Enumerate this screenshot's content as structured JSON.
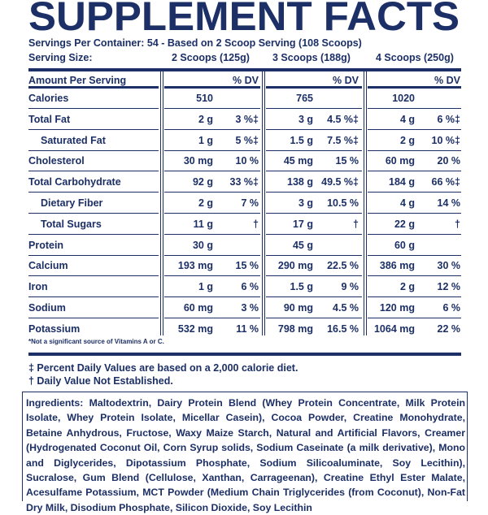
{
  "title": "SUPPLEMENT FACTS",
  "servings_per_container": "Servings Per Container: 54 - Based on 2 Scoop Serving (108 Scoops)",
  "serving_size": {
    "label": "Serving Size:",
    "columns": [
      "2 Scoops (125g)",
      "3 Scoops (188g)",
      "4 Scoops (250g)"
    ]
  },
  "table": {
    "header": [
      "Amount Per Serving",
      "% DV",
      "% DV",
      "% DV"
    ],
    "rows": [
      {
        "name": "Calories",
        "indent": false,
        "values": [
          "510",
          null,
          "765",
          null,
          "1020",
          null
        ]
      },
      {
        "name": "Total Fat",
        "indent": false,
        "values": [
          "2 g",
          "3 %‡",
          "3 g",
          "4.5 %‡",
          "4 g",
          "6 %‡"
        ]
      },
      {
        "name": "Saturated Fat",
        "indent": true,
        "values": [
          "1 g",
          "5 %‡",
          "1.5 g",
          "7.5 %‡",
          "2 g",
          "10 %‡"
        ]
      },
      {
        "name": "Cholesterol",
        "indent": false,
        "values": [
          "30 mg",
          "10 %",
          "45 mg",
          "15 %",
          "60 mg",
          "20 %"
        ]
      },
      {
        "name": "Total Carbohydrate",
        "indent": false,
        "values": [
          "92 g",
          "33 %‡",
          "138 g",
          "49.5 %‡",
          "184 g",
          "66 %‡"
        ]
      },
      {
        "name": "Dietary Fiber",
        "indent": true,
        "values": [
          "2 g",
          "7 %",
          "3 g",
          "10.5 %",
          "4 g",
          "14 %"
        ]
      },
      {
        "name": "Total Sugars",
        "indent": true,
        "values": [
          "11 g",
          "†",
          "17 g",
          "†",
          "22 g",
          "†"
        ]
      },
      {
        "name": "Protein",
        "indent": false,
        "values": [
          "30 g",
          null,
          "45 g",
          null,
          "60 g",
          null
        ]
      },
      {
        "name": "Calcium",
        "indent": false,
        "values": [
          "193 mg",
          "15 %",
          "290 mg",
          "22.5 %",
          "386 mg",
          "30 %"
        ]
      },
      {
        "name": "Iron",
        "indent": false,
        "values": [
          "1 g",
          "6 %",
          "1.5 g",
          "9 %",
          "2 g",
          "12 %"
        ]
      },
      {
        "name": "Sodium",
        "indent": false,
        "values": [
          "60 mg",
          "3 %",
          "90 mg",
          "4.5 %",
          "120 mg",
          "6 %"
        ]
      },
      {
        "name": "Potassium",
        "indent": false,
        "values": [
          "532 mg",
          "11 %",
          "798 mg",
          "16.5 %",
          "1064 mg",
          "22 %"
        ]
      }
    ]
  },
  "small_note": "*Not a significant source of Vitamins A or C.",
  "footnotes": [
    "‡ Percent Daily Values are based on a 2,000 calorie diet.",
    "† Daily Value Not Established."
  ],
  "ingredients": {
    "label": "Ingredients:",
    "text": "Maltodextrin, Dairy Protein Blend (Whey Protein Concentrate, Milk Protein Isolate, Whey Protein Isolate, Micellar Casein), Cocoa Powder, Creatine Monohydrate, Betaine Anhydrous, Fructose, Waxy Maize Starch, Natural and Artificial Flavors, Creamer (Hydrogenated Coconut Oil, Corn Syrup solids, Sodium Caseinate (a milk derivative), Mono and Diglycerides, Dipotassium Phosphate, Sodium Silicoaluminate, Soy Lecithin), Sucralose, Gum Blend (Cellulose, Xanthan, Carrageenan), Creatine Ethyl Ester Malate, Acesulfame Potassium, MCT Powder (Medium Chain Triglycerides (from Coconut), Non-Fat Dry Milk, Disodium Phosphate, Silicon Dioxide, Soy Lecithin"
  }
}
